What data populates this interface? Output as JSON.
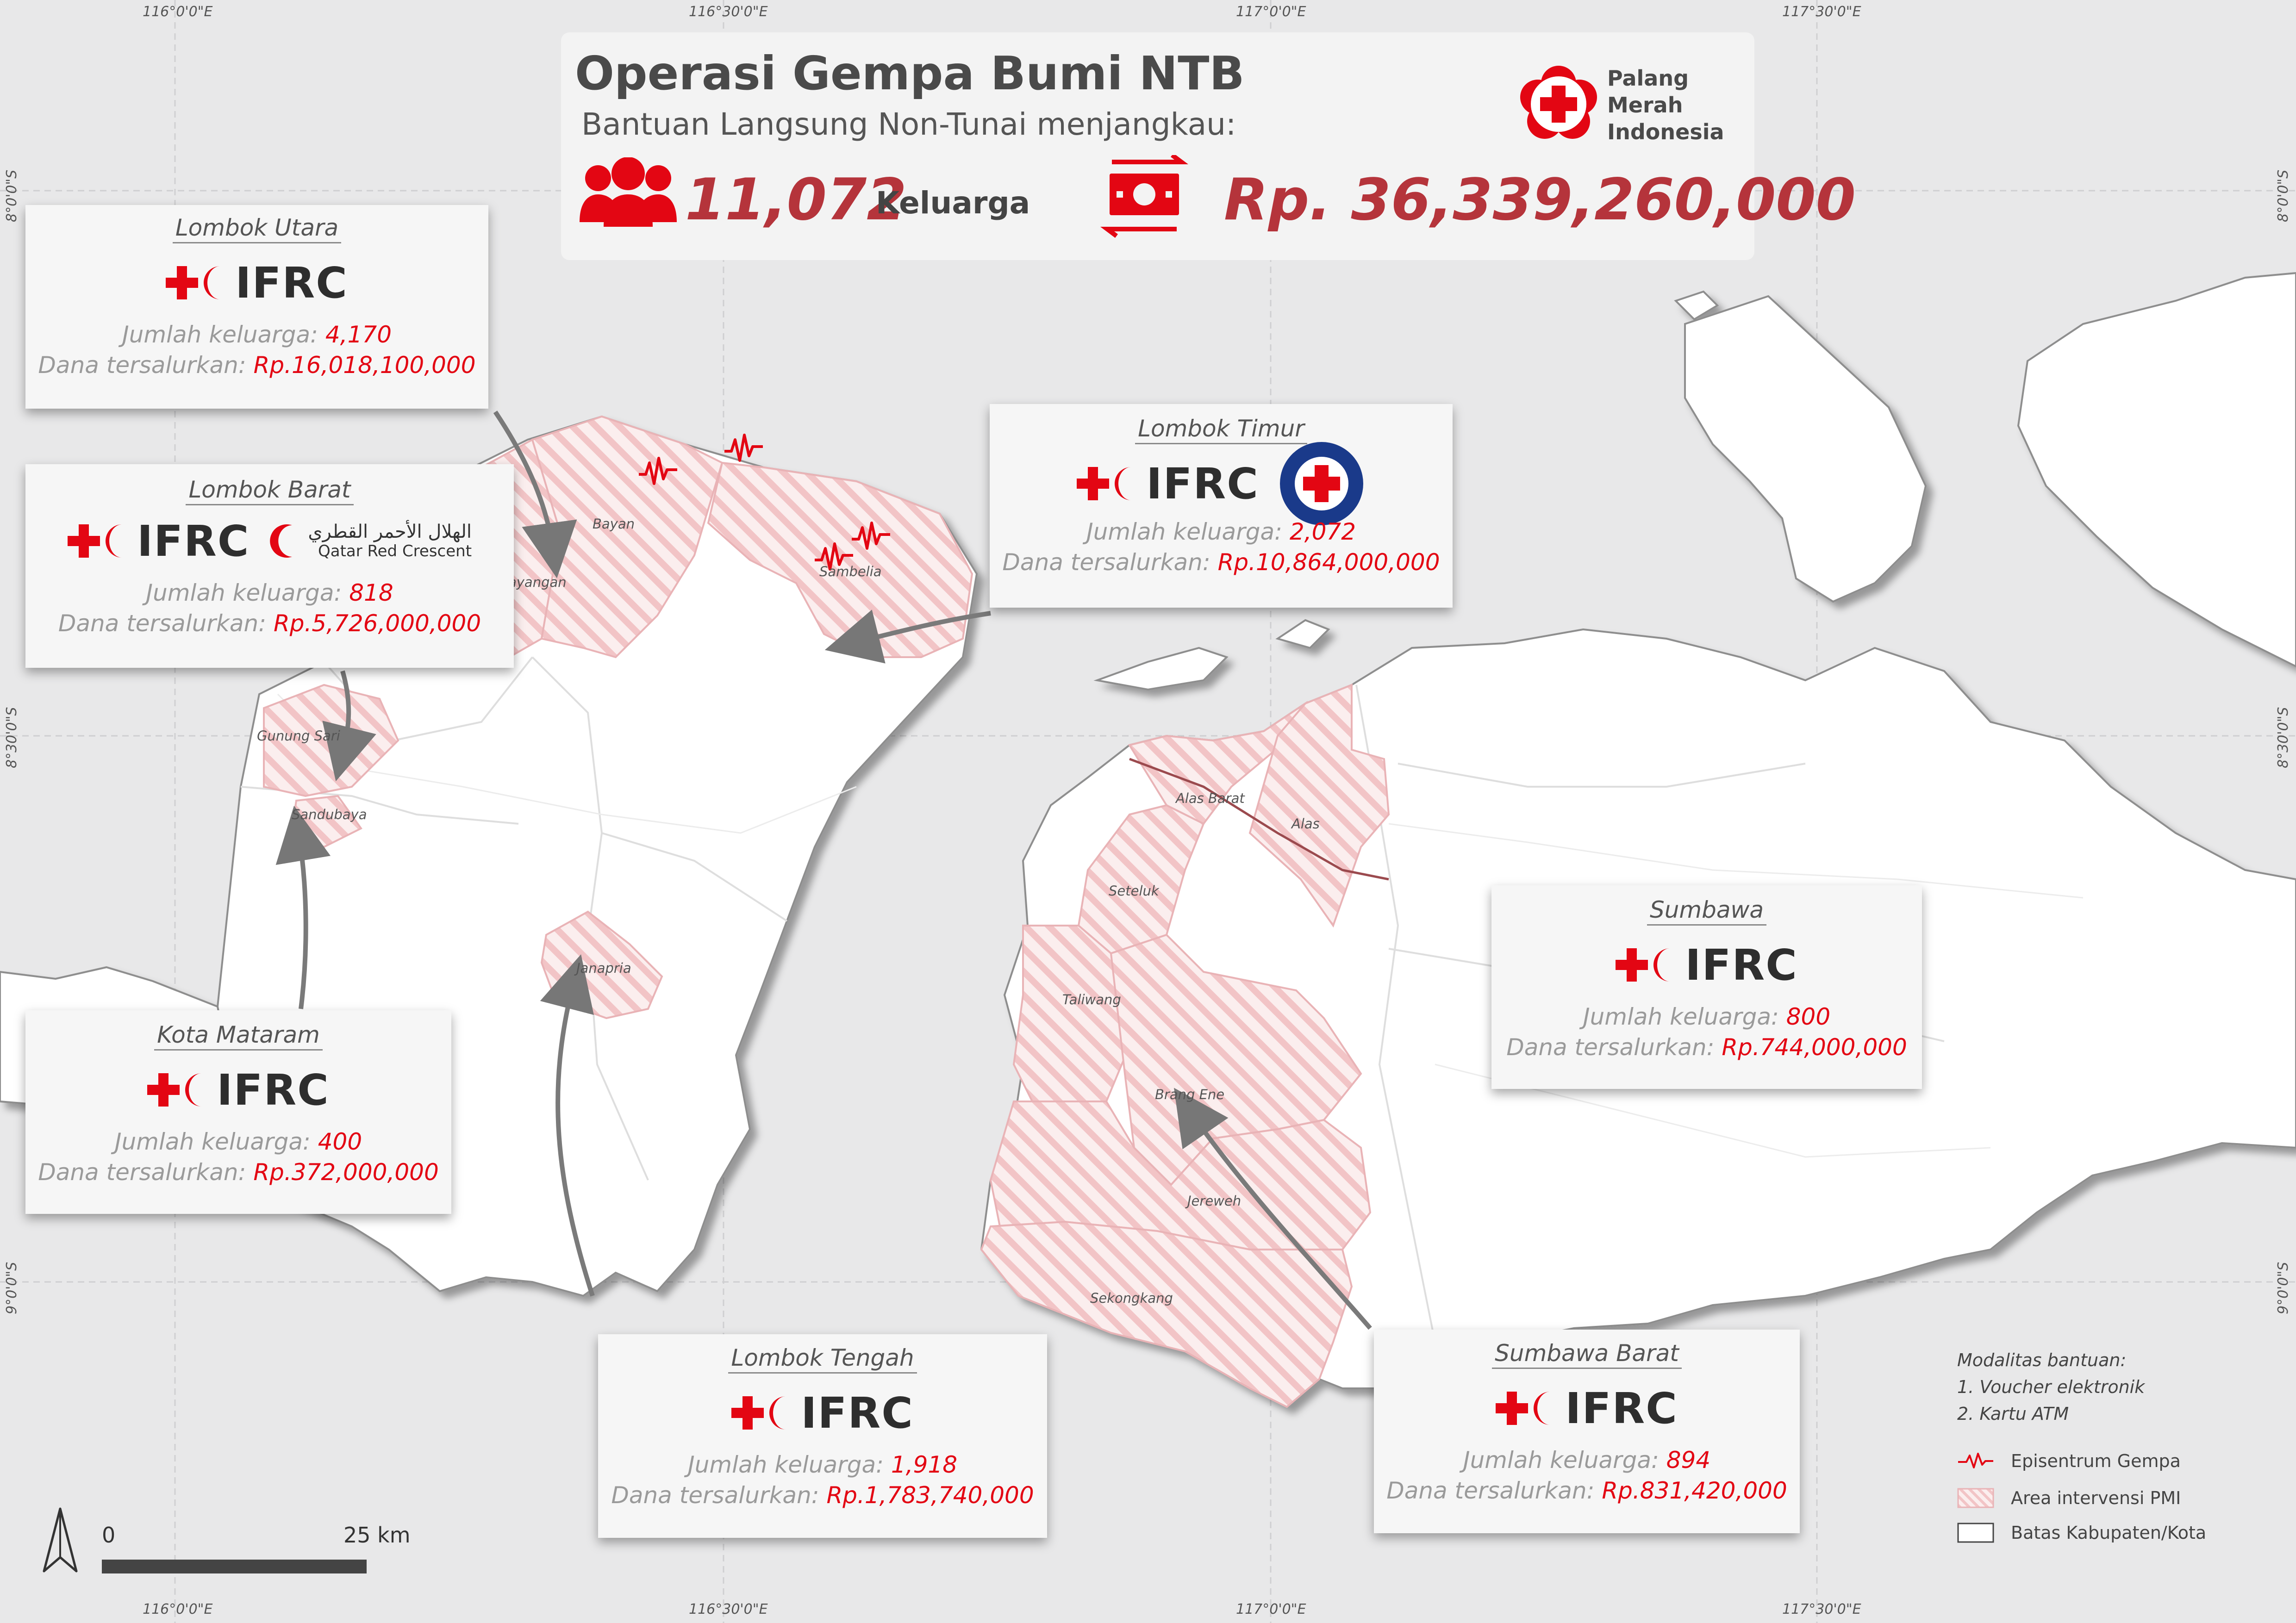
{
  "title": {
    "main": "Operasi Gempa Bumi NTB",
    "subtitle": "Bantuan Langsung Non-Tunai menjangkau:",
    "families_value": "11,072",
    "families_label": "Keluarga",
    "money_value": "Rp. 36,339,260,000",
    "org_name_lines": [
      "Palang",
      "Merah",
      "Indonesia"
    ]
  },
  "coordinates": {
    "top": [
      "116°0'0\"E",
      "116°30'0\"E",
      "117°0'0\"E",
      "117°30'0\"E"
    ],
    "bottom": [
      "116°0'0\"E",
      "116°30'0\"E",
      "117°0'0\"E",
      "117°30'0\"E"
    ],
    "left": [
      "8°0'0\"S",
      "8°30'0\"S",
      "9°0'0\"S"
    ],
    "right": [
      "8°0'0\"S",
      "8°30'0\"S",
      "9°0'0\"S"
    ]
  },
  "cards": [
    {
      "id": "lombok-utara",
      "region": "Lombok Utara",
      "partners": [
        "IFRC"
      ],
      "families_label": "Jumlah keluarga:",
      "families": "4,170",
      "funds_label": "Dana tersalurkan:",
      "funds": "Rp.16,018,100,000"
    },
    {
      "id": "lombok-barat",
      "region": "Lombok Barat",
      "partners": [
        "IFRC",
        "Qatar Red Crescent"
      ],
      "qrc_arabic": "الهلال الأحمر القطري",
      "families_label": "Jumlah keluarga:",
      "families": "818",
      "funds_label": "Dana tersalurkan:",
      "funds": "Rp.5,726,000,000"
    },
    {
      "id": "lombok-timur",
      "region": "Lombok Timur",
      "partners": [
        "IFRC",
        "Hong Kong Red Cross"
      ],
      "families_label": "Jumlah keluarga:",
      "families": "2,072",
      "funds_label": "Dana tersalurkan:",
      "funds": "Rp.10,864,000,000"
    },
    {
      "id": "kota-mataram",
      "region": "Kota Mataram",
      "partners": [
        "IFRC"
      ],
      "families_label": "Jumlah keluarga:",
      "families": "400",
      "funds_label": "Dana tersalurkan:",
      "funds": "Rp.372,000,000"
    },
    {
      "id": "lombok-tengah",
      "region": "Lombok Tengah",
      "partners": [
        "IFRC"
      ],
      "families_label": "Jumlah keluarga:",
      "families": "1,918",
      "funds_label": "Dana tersalurkan:",
      "funds": "Rp.1,783,740,000"
    },
    {
      "id": "sumbawa",
      "region": "Sumbawa",
      "partners": [
        "IFRC"
      ],
      "families_label": "Jumlah keluarga:",
      "families": "800",
      "funds_label": "Dana tersalurkan:",
      "funds": "Rp.744,000,000"
    },
    {
      "id": "sumbawa-barat",
      "region": "Sumbawa Barat",
      "partners": [
        "IFRC"
      ],
      "families_label": "Jumlah keluarga:",
      "families": "894",
      "funds_label": "Dana tersalurkan:",
      "funds": "Rp.831,420,000"
    }
  ],
  "ifrc_text": "IFRC",
  "places": [
    "Bayan",
    "Kayangan",
    "Sambelia",
    "Gunung Sari",
    "Sandubaya",
    "Janapria",
    "Alas Barat",
    "Alas",
    "Seteluk",
    "Taliwang",
    "Brang Ene",
    "Jereweh",
    "Sekongkang"
  ],
  "legend": {
    "modality_title": "Modalitas bantuan:",
    "modality_items": [
      "1. Voucher elektronik",
      "2. Kartu ATM"
    ],
    "items": [
      "Episentrum Gempa",
      "Area intervensi PMI",
      "Batas Kabupaten/Kota"
    ]
  },
  "scale": {
    "zero": "0",
    "max": "25 km"
  },
  "colors": {
    "accent_red": "#e30613",
    "value_red": "#b5343b",
    "hatch": "#f2c4c6",
    "land": "#ffffff",
    "sea": "#e8e8e9"
  }
}
